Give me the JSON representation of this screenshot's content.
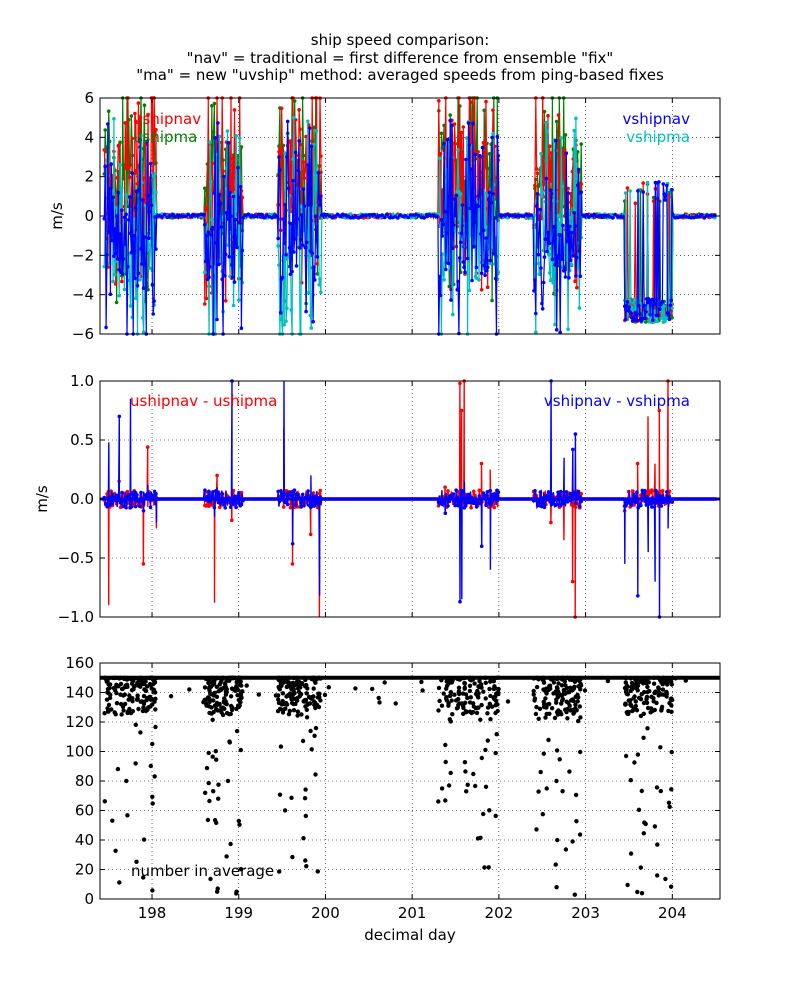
{
  "figure": {
    "title_lines": [
      "ship speed comparison:",
      "\"nav\" = traditional = first difference from ensemble \"fix\"",
      "\"ma\" = new \"uvship\" method: averaged speeds from ping-based fixes"
    ],
    "xlabel": "decimal day",
    "xticks": [
      198,
      199,
      200,
      201,
      202,
      203,
      204
    ],
    "xlim": [
      197.4,
      204.55
    ]
  },
  "chart_data": [
    {
      "type": "line",
      "ylabel": "m/s",
      "ylim": [
        -6,
        6
      ],
      "yticks": [
        "−6",
        "−4",
        "−2",
        "0",
        "2",
        "4",
        "6"
      ],
      "grid": true,
      "legend_left": [
        {
          "text": "ushipnav",
          "color": "#ff0000"
        },
        {
          "text": "ushipma",
          "color": "#008000"
        }
      ],
      "legend_right": [
        {
          "text": "vshipnav",
          "color": "#0000ff"
        },
        {
          "text": "vshipma",
          "color": "#00bfbf"
        }
      ],
      "series": [
        {
          "name": "ushipnav",
          "color": "#ff0000"
        },
        {
          "name": "ushipma",
          "color": "#008000"
        },
        {
          "name": "vshipnav",
          "color": "#0000ff"
        },
        {
          "name": "vshipma",
          "color": "#00bfbf"
        }
      ],
      "active_segments": [
        [
          197.45,
          198.05
        ],
        [
          198.6,
          199.05
        ],
        [
          199.45,
          199.95
        ],
        [
          201.3,
          202.0
        ],
        [
          202.4,
          202.95
        ],
        [
          203.45,
          204.0
        ]
      ],
      "active_amplitude": [
        6,
        6,
        6,
        6,
        6,
        5.5
      ]
    },
    {
      "type": "line",
      "ylabel": "m/s",
      "ylim": [
        -1.0,
        1.0
      ],
      "yticks": [
        "−1.0",
        "−0.5",
        "0.0",
        "0.5",
        "1.0"
      ],
      "grid": true,
      "legend_left": [
        {
          "text": "ushipnav - ushipma",
          "color": "#ff0000"
        }
      ],
      "legend_right": [
        {
          "text": "vshipnav - vshipma",
          "color": "#0000ff"
        }
      ],
      "series": [
        {
          "name": "ushipnav - ushipma",
          "color": "#ff0000"
        },
        {
          "name": "vshipnav - vshipma",
          "color": "#0000ff"
        }
      ],
      "spikes": [
        {
          "x": 197.5,
          "u": -0.9,
          "v": 0.48
        },
        {
          "x": 197.62,
          "u": 0.15,
          "v": 0.7
        },
        {
          "x": 197.75,
          "u": -0.05,
          "v": 0.85
        },
        {
          "x": 197.9,
          "u": -0.55,
          "v": -0.1
        },
        {
          "x": 197.95,
          "u": 0.44,
          "v": 0.12
        },
        {
          "x": 198.05,
          "u": -0.25,
          "v": -0.2
        },
        {
          "x": 198.72,
          "u": -0.88,
          "v": -0.15
        },
        {
          "x": 198.75,
          "u": 0.2,
          "v": 0.1
        },
        {
          "x": 198.92,
          "u": -0.18,
          "v": 1.0
        },
        {
          "x": 199.52,
          "u": 0.6,
          "v": 1.0
        },
        {
          "x": 199.62,
          "u": -0.55,
          "v": -0.38
        },
        {
          "x": 199.83,
          "u": -0.3,
          "v": 0.2
        },
        {
          "x": 199.93,
          "u": -1.0,
          "v": -0.82
        },
        {
          "x": 201.38,
          "u": 0.1,
          "v": -0.12
        },
        {
          "x": 201.55,
          "u": 0.98,
          "v": -0.87
        },
        {
          "x": 201.57,
          "u": 0.75,
          "v": -0.85
        },
        {
          "x": 201.6,
          "u": 1.0,
          "v": 0.15
        },
        {
          "x": 201.8,
          "u": 0.3,
          "v": -0.4
        },
        {
          "x": 201.9,
          "u": 0.25,
          "v": -0.6
        },
        {
          "x": 202.6,
          "u": -0.2,
          "v": 1.0
        },
        {
          "x": 202.75,
          "u": -0.35,
          "v": 0.35
        },
        {
          "x": 202.85,
          "u": -0.7,
          "v": 0.42
        },
        {
          "x": 202.88,
          "u": -1.0,
          "v": 0.55
        },
        {
          "x": 203.45,
          "u": -0.1,
          "v": -0.55
        },
        {
          "x": 203.6,
          "u": 0.3,
          "v": -0.82
        },
        {
          "x": 203.72,
          "u": 0.7,
          "v": -0.45
        },
        {
          "x": 203.8,
          "u": 0.3,
          "v": -0.7
        },
        {
          "x": 203.85,
          "u": 0.75,
          "v": -1.0
        },
        {
          "x": 203.95,
          "u": 1.0,
          "v": -0.25
        }
      ]
    },
    {
      "type": "scatter",
      "ylim": [
        0,
        160
      ],
      "yticks": [
        "0",
        "20",
        "40",
        "60",
        "80",
        "100",
        "120",
        "140",
        "160"
      ],
      "grid": true,
      "annotation": "number in average",
      "color": "#000000",
      "baseline": 150,
      "active_segments": [
        [
          197.45,
          198.05
        ],
        [
          198.6,
          199.05
        ],
        [
          199.45,
          199.95
        ],
        [
          201.3,
          202.0
        ],
        [
          202.4,
          202.95
        ],
        [
          203.45,
          204.0
        ]
      ]
    }
  ]
}
